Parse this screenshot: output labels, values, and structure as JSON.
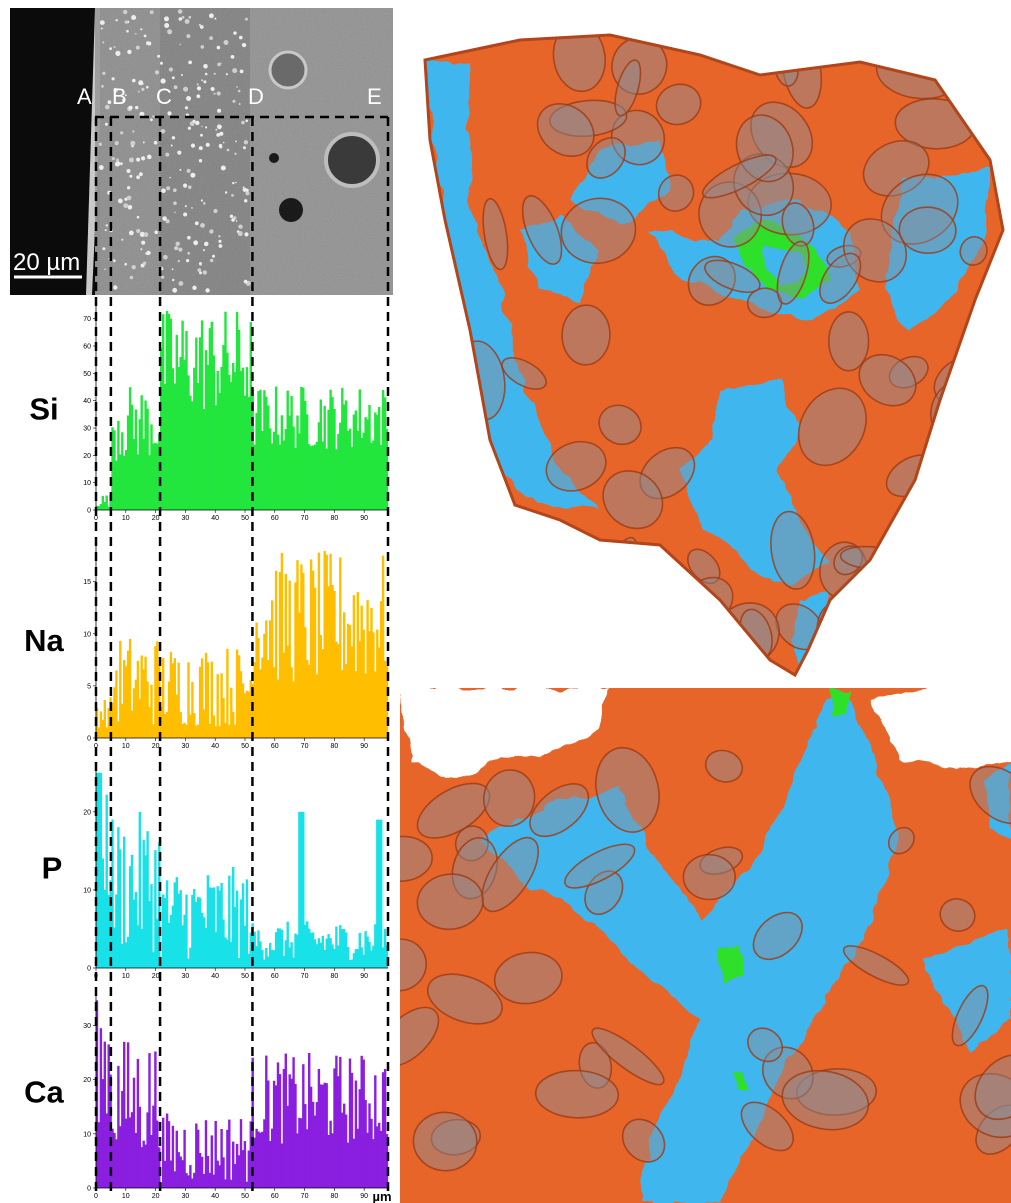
{
  "sem": {
    "scale_bar_label": "20 µm",
    "zone_labels": [
      "A",
      "B",
      "C",
      "D",
      "E"
    ]
  },
  "tomography": {
    "colors": {
      "matrix": "#e8652a",
      "grain": "#8a8f9a",
      "glass": "#3fb6ef",
      "highlight": "#2fe02a"
    }
  },
  "chart_data": {
    "type": "bar",
    "x_unit": "µm",
    "x_ticks": [
      0,
      10,
      20,
      30,
      40,
      50,
      60,
      70,
      80,
      90
    ],
    "xlim": [
      0,
      98
    ],
    "zone_boundaries_um": [
      0,
      5,
      21.5,
      52.5,
      98
    ],
    "series": [
      {
        "name": "Si",
        "color": "#22e63d",
        "ylim": [
          0,
          75
        ],
        "y_ticks": [
          0,
          10,
          20,
          30,
          40,
          50,
          60,
          70
        ],
        "levels": [
          {
            "from": 0,
            "to": 5,
            "low": 1,
            "high": 6
          },
          {
            "from": 5,
            "to": 21.5,
            "low": 18,
            "high": 46
          },
          {
            "from": 21.5,
            "to": 52.5,
            "low": 35,
            "high": 74
          },
          {
            "from": 52.5,
            "to": 98,
            "low": 22,
            "high": 46
          }
        ]
      },
      {
        "name": "Na",
        "color": "#ffbf00",
        "ylim": [
          0,
          19
        ],
        "y_ticks": [
          0,
          5,
          10,
          15
        ],
        "levels": [
          {
            "from": 0,
            "to": 5,
            "low": 1,
            "high": 4
          },
          {
            "from": 5,
            "to": 21.5,
            "low": 1,
            "high": 10
          },
          {
            "from": 21.5,
            "to": 52.5,
            "low": 1,
            "high": 9
          },
          {
            "from": 52.5,
            "to": 98,
            "low": 5,
            "high": 18
          }
        ]
      },
      {
        "name": "P",
        "color": "#19e1e8",
        "ylim": [
          0,
          26
        ],
        "y_ticks": [
          0,
          10,
          20
        ],
        "levels": [
          {
            "from": 0,
            "to": 5,
            "low": 8,
            "high": 25
          },
          {
            "from": 5,
            "to": 21.5,
            "low": 2,
            "high": 20
          },
          {
            "from": 21.5,
            "to": 52.5,
            "low": 1,
            "high": 13
          },
          {
            "from": 52.5,
            "to": 98,
            "low": 1,
            "high": 6
          }
        ],
        "peaks": [
          {
            "x": 69,
            "y": 20
          },
          {
            "x": 95,
            "y": 19
          },
          {
            "x": 1,
            "y": 25
          }
        ]
      },
      {
        "name": "Ca",
        "color": "#8a1fe0",
        "ylim": [
          0,
          36
        ],
        "y_ticks": [
          0,
          10,
          20,
          30
        ],
        "levels": [
          {
            "from": 0,
            "to": 5,
            "low": 12,
            "high": 35
          },
          {
            "from": 5,
            "to": 21.5,
            "low": 5,
            "high": 28
          },
          {
            "from": 21.5,
            "to": 52.5,
            "low": 1,
            "high": 14
          },
          {
            "from": 52.5,
            "to": 98,
            "low": 8,
            "high": 25
          }
        ]
      }
    ]
  }
}
